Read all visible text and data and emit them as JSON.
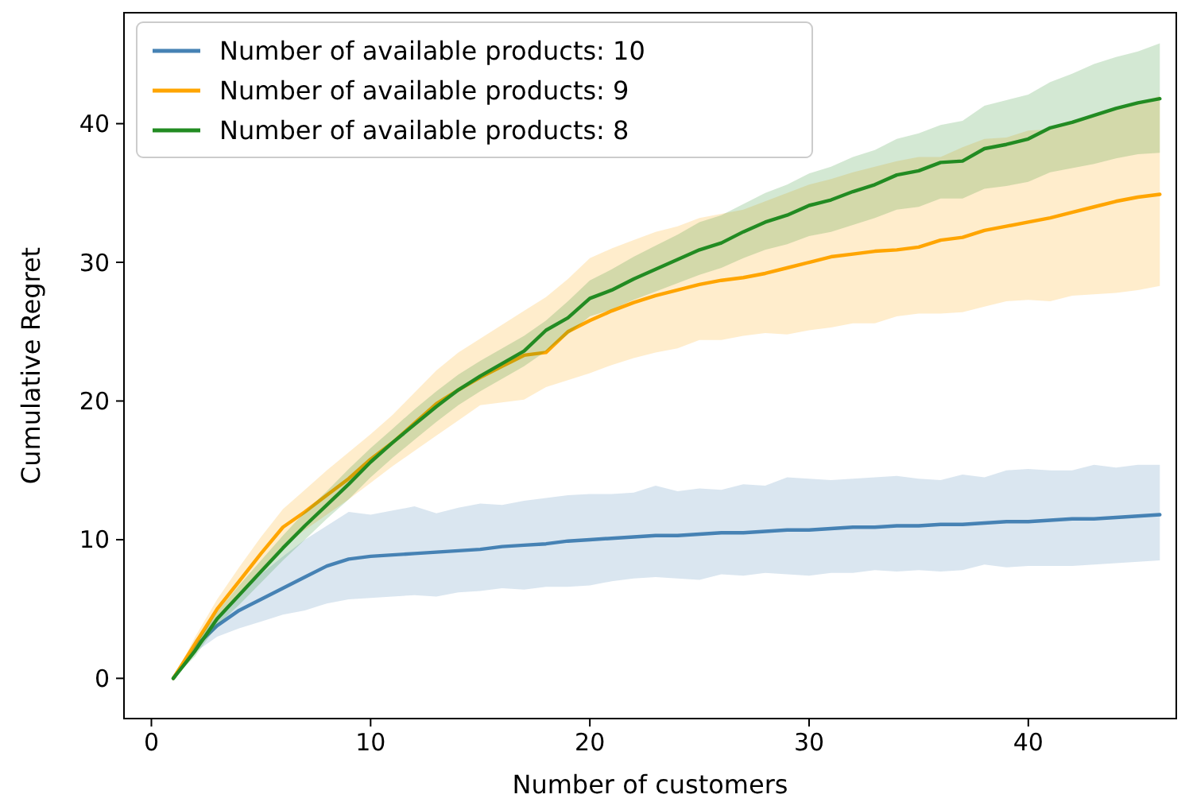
{
  "chart_data": {
    "type": "line",
    "xlabel": "Number of customers",
    "ylabel": "Cumulative Regret",
    "x": [
      1,
      2,
      3,
      4,
      5,
      6,
      7,
      8,
      9,
      10,
      11,
      12,
      13,
      14,
      15,
      16,
      17,
      18,
      19,
      20,
      21,
      22,
      23,
      24,
      25,
      26,
      27,
      28,
      29,
      30,
      31,
      32,
      33,
      34,
      35,
      36,
      37,
      38,
      39,
      40,
      41,
      42,
      43,
      44,
      45,
      46
    ],
    "xlim": [
      -1.25,
      46.75
    ],
    "xticks": [
      0,
      10,
      20,
      30,
      40
    ],
    "ylim": [
      -2.9,
      48
    ],
    "yticks": [
      0,
      10,
      20,
      30,
      40
    ],
    "legend": "top left",
    "grid": false,
    "marker": "none",
    "line_style": "solid",
    "series": [
      {
        "name": "Number of available products: 10",
        "color": "#4682b4",
        "values": [
          0,
          2.3,
          3.8,
          4.9,
          5.7,
          6.5,
          7.3,
          8.1,
          8.6,
          8.8,
          8.9,
          9.0,
          9.1,
          9.2,
          9.3,
          9.5,
          9.6,
          9.7,
          9.9,
          10,
          10.1,
          10.2,
          10.3,
          10.3,
          10.4,
          10.5,
          10.5,
          10.6,
          10.7,
          10.7,
          10.8,
          10.9,
          10.9,
          11,
          11,
          11.1,
          11.1,
          11.2,
          11.3,
          11.3,
          11.4,
          11.5,
          11.5,
          11.6,
          11.7,
          11.8
        ],
        "upper": [
          0,
          2.8,
          4.5,
          6,
          7.5,
          8.8,
          10,
          11,
          12,
          11.8,
          12.1,
          12.4,
          11.9,
          12.3,
          12.6,
          12.5,
          12.8,
          13,
          13.2,
          13.3,
          13.3,
          13.4,
          13.9,
          13.5,
          13.7,
          13.6,
          14,
          13.9,
          14.5,
          14.4,
          14.3,
          14.4,
          14.5,
          14.6,
          14.4,
          14.3,
          14.7,
          14.5,
          15,
          15.1,
          15,
          15,
          15.4,
          15.2,
          15.4,
          15.4
        ],
        "lower": [
          0,
          1.9,
          3,
          3.6,
          4.1,
          4.6,
          4.9,
          5.4,
          5.7,
          5.8,
          5.9,
          6,
          5.9,
          6.2,
          6.3,
          6.5,
          6.4,
          6.6,
          6.6,
          6.7,
          7,
          7.2,
          7.3,
          7.2,
          7.1,
          7.5,
          7.4,
          7.6,
          7.5,
          7.4,
          7.6,
          7.6,
          7.8,
          7.7,
          7.8,
          7.7,
          7.8,
          8.2,
          8,
          8.1,
          8.1,
          8.1,
          8.2,
          8.3,
          8.4,
          8.5
        ]
      },
      {
        "name": "Number of available products: 9",
        "color": "#ffa500",
        "values": [
          0,
          2.5,
          5,
          7,
          9,
          10.9,
          12,
          13.2,
          14.4,
          15.8,
          17,
          18.4,
          19.8,
          20.8,
          21.7,
          22.5,
          23.3,
          23.5,
          25,
          25.8,
          26.5,
          27.1,
          27.6,
          28,
          28.4,
          28.7,
          28.9,
          29.2,
          29.6,
          30,
          30.4,
          30.6,
          30.8,
          30.9,
          31.1,
          31.6,
          31.8,
          32.3,
          32.6,
          32.9,
          33.2,
          33.6,
          34,
          34.4,
          34.7,
          34.9
        ],
        "upper": [
          0,
          3,
          5.7,
          8,
          10.2,
          12.2,
          13.6,
          15,
          16.3,
          17.6,
          19,
          20.6,
          22.2,
          23.5,
          24.5,
          25.5,
          26.5,
          27.5,
          28.8,
          30.3,
          31,
          31.6,
          32.2,
          32.6,
          33.2,
          33.5,
          33.8,
          34.4,
          35,
          35.6,
          36,
          36.5,
          36.9,
          37.3,
          37.6,
          37.6,
          38.3,
          38.9,
          39,
          39.5,
          39.6,
          40.1,
          40.5,
          41,
          41.5,
          42
        ],
        "lower": [
          0,
          2,
          4.4,
          6,
          7.8,
          9.5,
          10.7,
          11.8,
          12.9,
          14.1,
          15.3,
          16.4,
          17.5,
          18.6,
          19.7,
          19.9,
          20.1,
          21,
          21.5,
          22,
          22.6,
          23.1,
          23.5,
          23.8,
          24.4,
          24.4,
          24.7,
          24.9,
          24.8,
          25.1,
          25.3,
          25.6,
          25.6,
          26.1,
          26.3,
          26.3,
          26.4,
          26.8,
          27.2,
          27.3,
          27.2,
          27.6,
          27.7,
          27.8,
          28,
          28.3
        ]
      },
      {
        "name": "Number of available products: 8",
        "color": "#228b22",
        "values": [
          0,
          2,
          4.3,
          6,
          7.7,
          9.4,
          11,
          12.5,
          14,
          15.6,
          17,
          18.3,
          19.6,
          20.8,
          21.8,
          22.7,
          23.6,
          25.1,
          26,
          27.4,
          28,
          28.8,
          29.5,
          30.2,
          30.9,
          31.4,
          32.2,
          32.9,
          33.4,
          34.1,
          34.5,
          35.1,
          35.6,
          36.3,
          36.6,
          37.2,
          37.3,
          38.2,
          38.5,
          38.9,
          39.7,
          40.1,
          40.6,
          41.1,
          41.5,
          41.8
        ],
        "upper": [
          0,
          2.4,
          4.8,
          6.7,
          8.5,
          10.3,
          12,
          13.5,
          15.1,
          16.6,
          18,
          19.4,
          20.7,
          21.9,
          22.9,
          23.8,
          24.7,
          25.8,
          27.2,
          28.7,
          29.5,
          30.4,
          31.2,
          32,
          32.9,
          33.4,
          34.2,
          35,
          35.6,
          36.4,
          36.9,
          37.6,
          38.1,
          38.9,
          39.3,
          39.9,
          40.2,
          41.3,
          41.7,
          42.1,
          43,
          43.6,
          44.3,
          44.8,
          45.2,
          45.8
        ],
        "lower": [
          0,
          1.6,
          3.8,
          5.3,
          6.9,
          8.5,
          10,
          11.5,
          12.9,
          14.5,
          15.9,
          17.2,
          18.5,
          19.7,
          20.7,
          21.6,
          22.5,
          23.6,
          24.8,
          26.1,
          26.6,
          27.3,
          27.9,
          28.5,
          29.1,
          29.6,
          30.3,
          30.9,
          31.3,
          31.9,
          32.2,
          32.7,
          33.2,
          33.8,
          34,
          34.6,
          34.6,
          35.3,
          35.5,
          35.8,
          36.5,
          36.8,
          37.1,
          37.5,
          37.8,
          37.9
        ]
      }
    ]
  }
}
